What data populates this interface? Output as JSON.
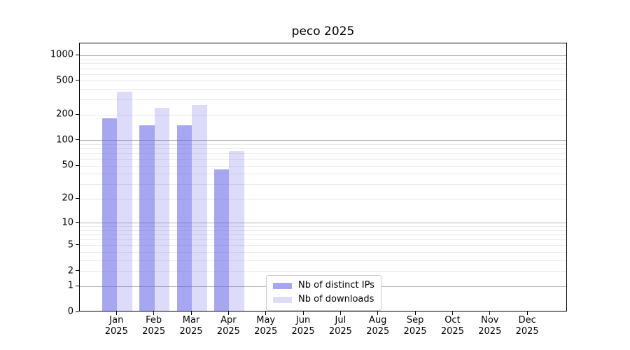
{
  "chart_data": {
    "type": "bar",
    "title": "peco 2025",
    "xlabel": "",
    "ylabel": "",
    "yscale": "log1p",
    "ylim": [
      0,
      1380
    ],
    "yticks": [
      0,
      1,
      2,
      5,
      10,
      20,
      50,
      100,
      200,
      500,
      1000
    ],
    "minor_gridlines": [
      2,
      3,
      4,
      5,
      6,
      7,
      8,
      9,
      20,
      30,
      40,
      50,
      60,
      70,
      80,
      90,
      200,
      300,
      400,
      500,
      600,
      700,
      800,
      900
    ],
    "major_gridlines": [
      1,
      10,
      100,
      1000
    ],
    "grid_major_color": "#b0b0b0",
    "grid_minor_color": "#e9e9e9",
    "legend_position": "lower center-left",
    "categories": [
      {
        "month": "Jan",
        "year": "2025"
      },
      {
        "month": "Feb",
        "year": "2025"
      },
      {
        "month": "Mar",
        "year": "2025"
      },
      {
        "month": "Apr",
        "year": "2025"
      },
      {
        "month": "May",
        "year": "2025"
      },
      {
        "month": "Jun",
        "year": "2025"
      },
      {
        "month": "Jul",
        "year": "2025"
      },
      {
        "month": "Aug",
        "year": "2025"
      },
      {
        "month": "Sep",
        "year": "2025"
      },
      {
        "month": "Oct",
        "year": "2025"
      },
      {
        "month": "Nov",
        "year": "2025"
      },
      {
        "month": "Dec",
        "year": "2025"
      }
    ],
    "series": [
      {
        "name": "Nb of distinct IPs",
        "color": "#a6a6f1",
        "values": [
          175,
          146,
          147,
          44,
          null,
          null,
          null,
          null,
          null,
          null,
          null,
          null
        ]
      },
      {
        "name": "Nb of downloads",
        "color": "#dcdcf9",
        "values": [
          365,
          235,
          253,
          72,
          null,
          null,
          null,
          null,
          null,
          null,
          null,
          null
        ]
      }
    ]
  }
}
